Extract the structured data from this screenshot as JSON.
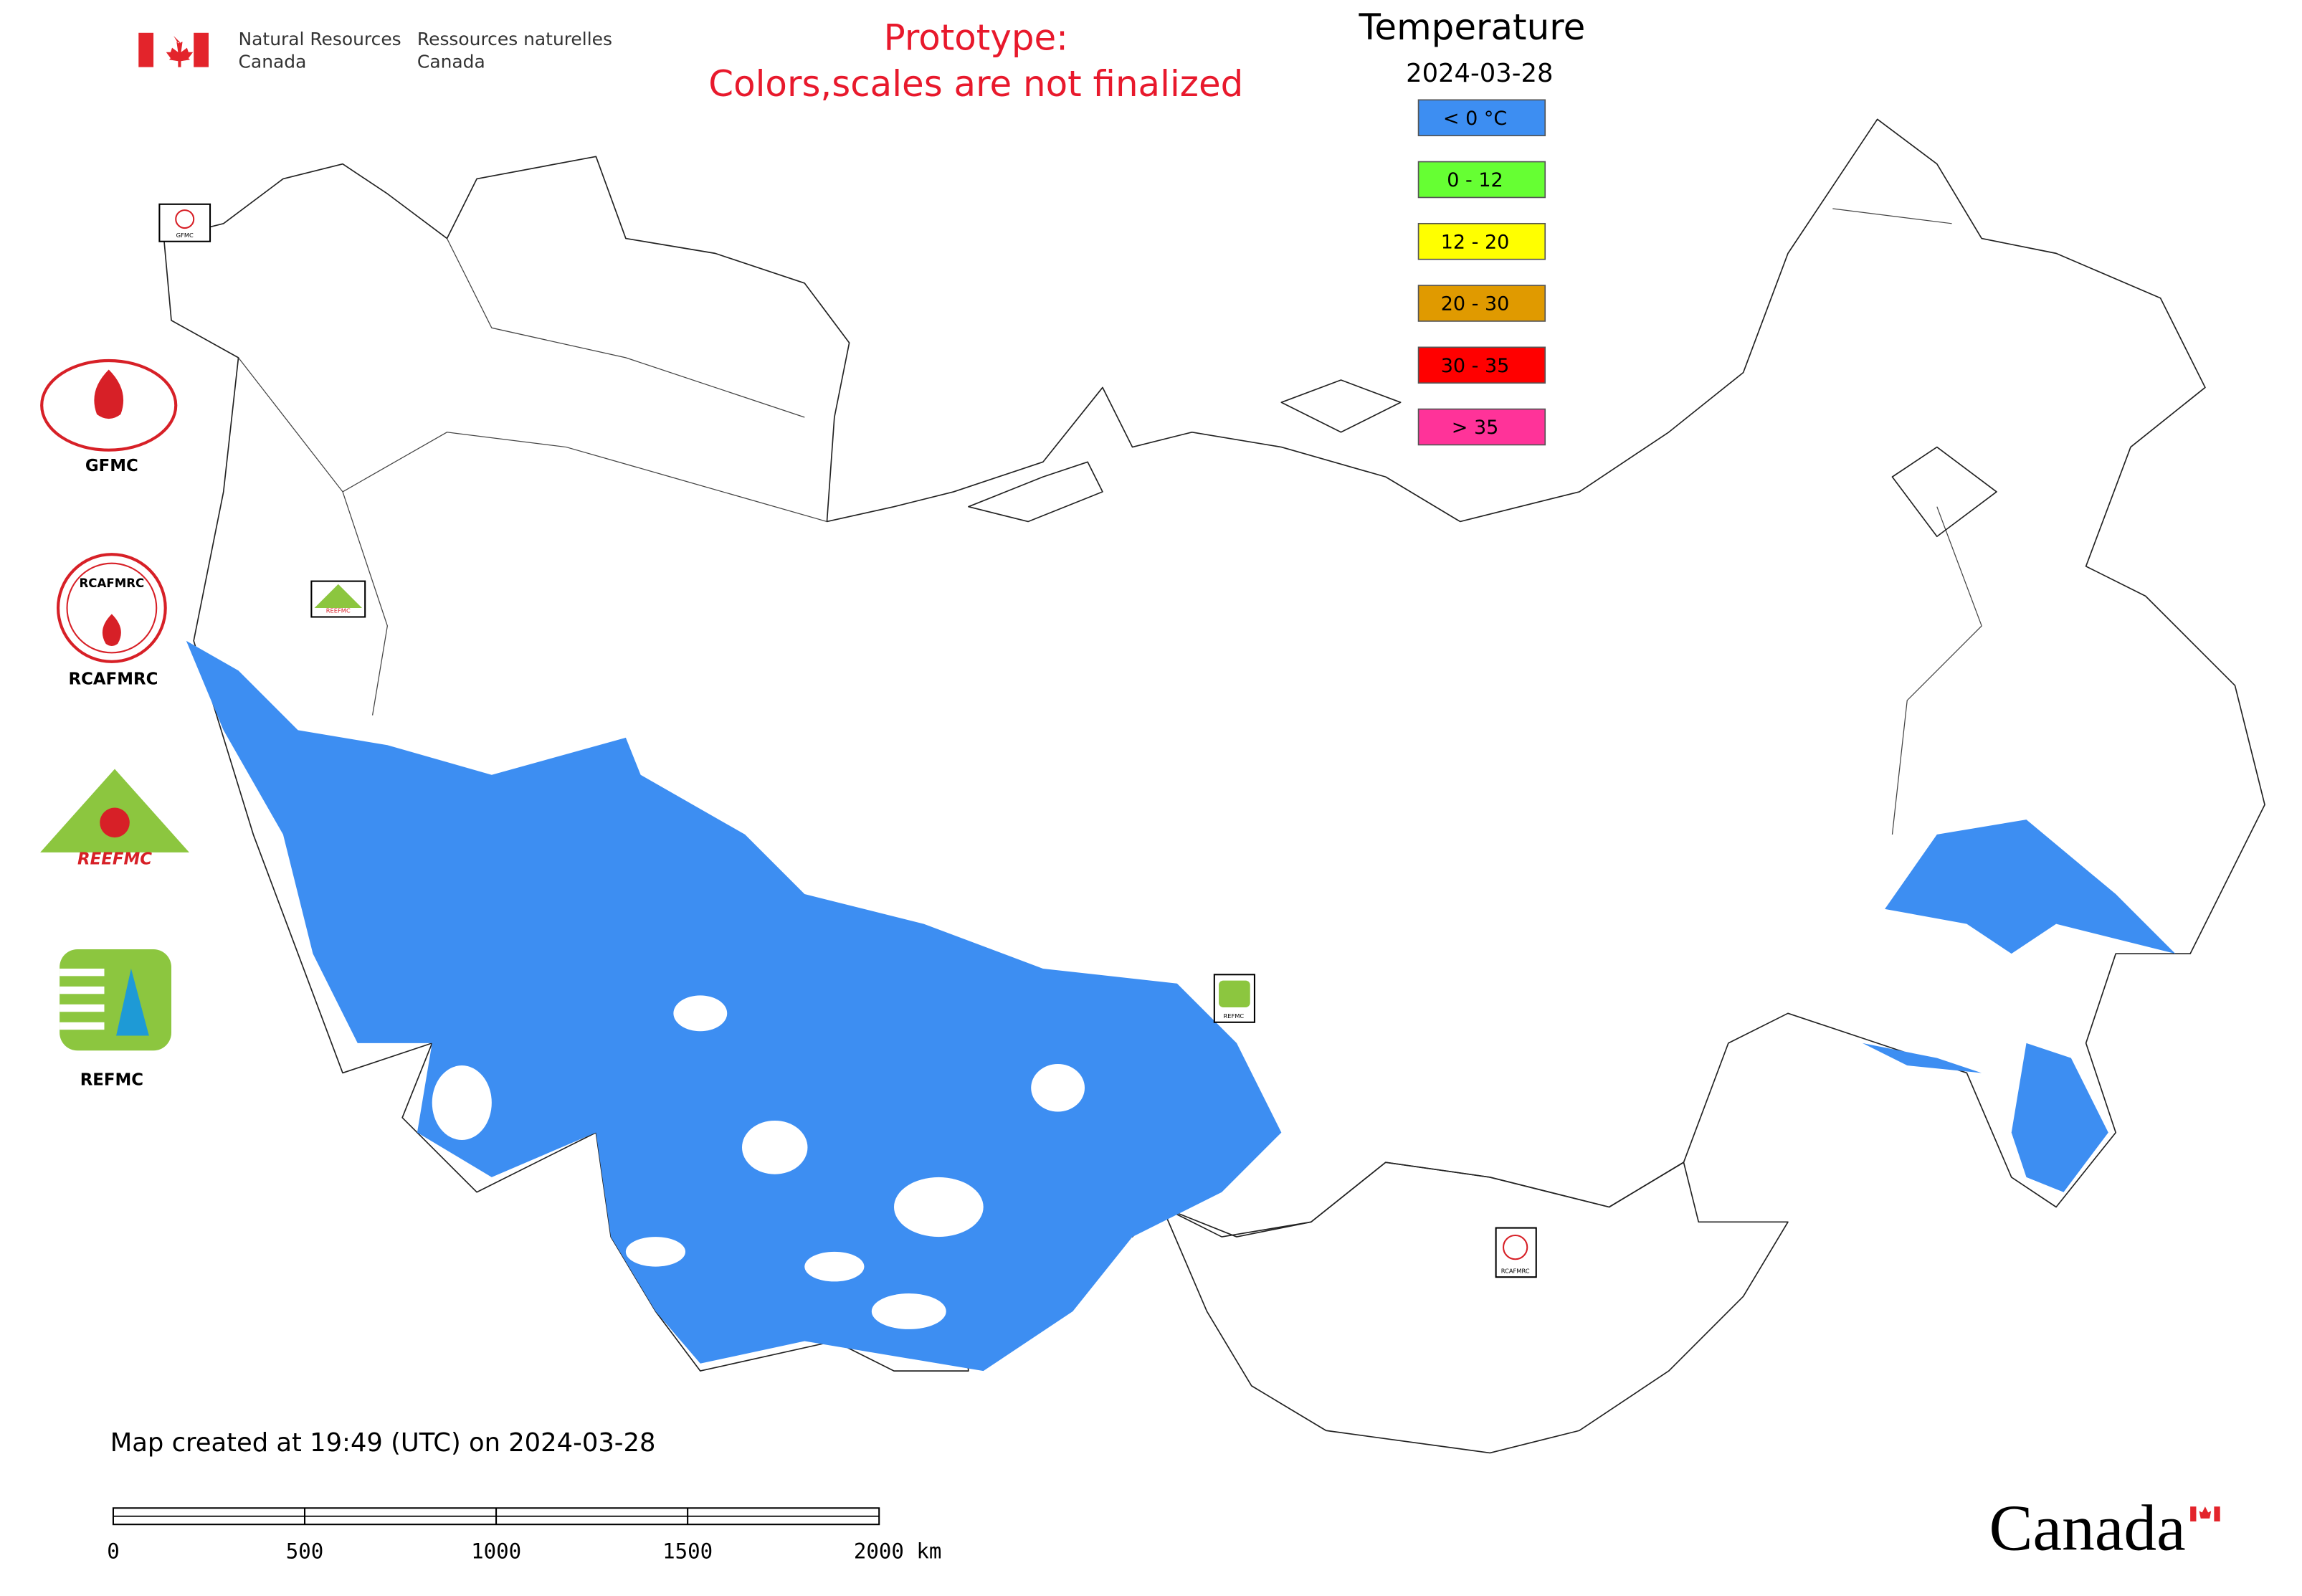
{
  "header": {
    "department_en": [
      "Natural Resources",
      "Canada"
    ],
    "department_fr": [
      "Ressources naturelles",
      "Canada"
    ],
    "notice": [
      "Prototype:",
      "Colors,scales are not finalized"
    ]
  },
  "legend": {
    "title": "Temperature",
    "date": "2024-03-28",
    "items": [
      {
        "label": "< 0 °C",
        "color": "#3d8ef2"
      },
      {
        "label": "0 - 12",
        "color": "#66ff33"
      },
      {
        "label": "12 - 20",
        "color": "#ffff00"
      },
      {
        "label": "20 - 30",
        "color": "#e09a00"
      },
      {
        "label": "30 - 35",
        "color": "#ff0000"
      },
      {
        "label": "> 35",
        "color": "#ff3399"
      }
    ]
  },
  "logos": [
    "GFMC",
    "RCAFMRC",
    "REEFMC",
    "REFMC"
  ],
  "footer": {
    "created": "Map created at 19:49 (UTC) on 2024-03-28",
    "scale_bar": [
      "0",
      "500",
      "1000",
      "1500",
      "2000 km"
    ],
    "wordmark": "Canada"
  }
}
